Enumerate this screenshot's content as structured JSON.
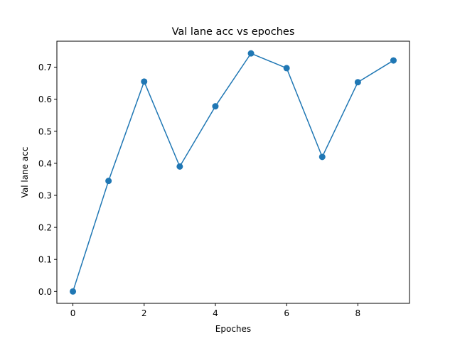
{
  "chart_data": {
    "type": "line",
    "title": "Val lane acc vs epoches",
    "xlabel": "Epoches",
    "ylabel": "Val lane acc",
    "xlim": [
      -0.45,
      9.45
    ],
    "ylim": [
      -0.037,
      0.781
    ],
    "xticks": [
      0,
      2,
      4,
      6,
      8
    ],
    "yticks": [
      0.0,
      0.1,
      0.2,
      0.3,
      0.4,
      0.5,
      0.6,
      0.7
    ],
    "grid": false,
    "legend": "none",
    "series": [
      {
        "color": "#1f77b4",
        "marker": "circle",
        "x": [
          0,
          1,
          2,
          3,
          4,
          5,
          6,
          7,
          8,
          9
        ],
        "y": [
          0.0,
          0.345,
          0.655,
          0.39,
          0.578,
          0.743,
          0.697,
          0.42,
          0.653,
          0.721
        ]
      }
    ]
  }
}
